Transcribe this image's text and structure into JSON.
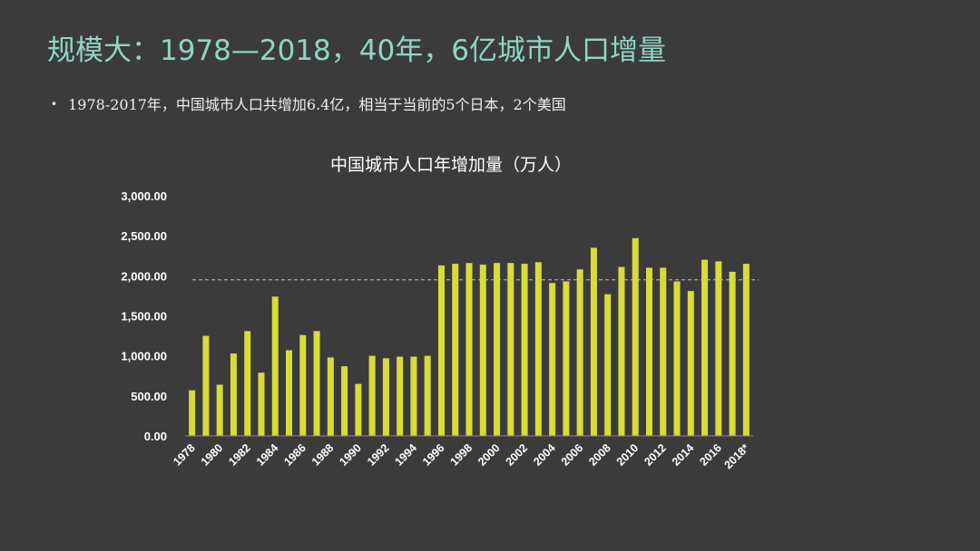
{
  "slide": {
    "title": "规模大：1978—2018，40年，6亿城市人口增量",
    "bullet": "1978-2017年，中国城市人口共增加6.4亿，相当于当前的5个日本，2个美国"
  },
  "chart_data": {
    "type": "bar",
    "title": "中国城市人口年增加量（万人）",
    "xlabel": "",
    "ylabel": "",
    "ylim": [
      0,
      3000
    ],
    "yticks": [
      "3,000.00",
      "2,500.00",
      "2,000.00",
      "1,500.00",
      "1,000.00",
      "500.00",
      "0.00"
    ],
    "ytick_values": [
      3000,
      2500,
      2000,
      1500,
      1000,
      500,
      0
    ],
    "categories": [
      "1978",
      "1979",
      "1980",
      "1981",
      "1982",
      "1983",
      "1984",
      "1985",
      "1986",
      "1987",
      "1988",
      "1989",
      "1990",
      "1991",
      "1992",
      "1993",
      "1994",
      "1995",
      "1996",
      "1997",
      "1998",
      "1999",
      "2000",
      "2001",
      "2002",
      "2003",
      "2004",
      "2005",
      "2006",
      "2007",
      "2008",
      "2009",
      "2010",
      "2011",
      "2012",
      "2013",
      "2014",
      "2015",
      "2016",
      "2017",
      "2018*"
    ],
    "visible_xtick_labels": [
      "1978",
      "1980",
      "1982",
      "1984",
      "1986",
      "1988",
      "1990",
      "1992",
      "1994",
      "1996",
      "1998",
      "2000",
      "2002",
      "2004",
      "2006",
      "2008",
      "2010",
      "2012",
      "2014",
      "2016",
      "2018*"
    ],
    "values": [
      570,
      1250,
      640,
      1030,
      1310,
      790,
      1740,
      1070,
      1260,
      1310,
      980,
      870,
      650,
      1000,
      970,
      990,
      990,
      1000,
      2130,
      2150,
      2160,
      2140,
      2160,
      2160,
      2150,
      2170,
      1910,
      1930,
      2080,
      2350,
      1770,
      2110,
      2470,
      2100,
      2100,
      1930,
      1810,
      2200,
      2180,
      2050,
      2150
    ],
    "reference_line": 1950,
    "bar_color": "#d8dc3a",
    "grid": false,
    "legend": "none"
  }
}
